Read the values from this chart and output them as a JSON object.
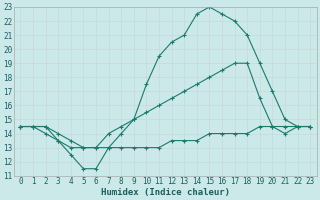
{
  "xlabel": "Humidex (Indice chaleur)",
  "bg_color": "#cce9e9",
  "grid_color": "#d4e8e8",
  "line_color": "#1a7a6e",
  "xlim_min": -0.5,
  "xlim_max": 23.5,
  "ylim_min": 11,
  "ylim_max": 23,
  "xticks": [
    0,
    1,
    2,
    3,
    4,
    5,
    6,
    7,
    8,
    9,
    10,
    11,
    12,
    13,
    14,
    15,
    16,
    17,
    18,
    19,
    20,
    21,
    22,
    23
  ],
  "yticks": [
    11,
    12,
    13,
    14,
    15,
    16,
    17,
    18,
    19,
    20,
    21,
    22,
    23
  ],
  "line1_x": [
    0,
    1,
    2,
    3,
    4,
    5,
    6,
    7,
    8,
    9,
    10,
    11,
    12,
    13,
    14,
    15,
    16,
    17,
    18,
    19,
    20,
    21,
    22,
    23
  ],
  "line1_y": [
    14.5,
    14.5,
    14.5,
    13.5,
    12.5,
    11.5,
    11.5,
    13.0,
    14.0,
    15.0,
    17.5,
    19.5,
    20.5,
    21.0,
    22.5,
    23.0,
    22.5,
    22.0,
    21.0,
    19.0,
    17.0,
    15.0,
    14.5,
    14.5
  ],
  "line2_x": [
    0,
    1,
    2,
    3,
    4,
    5,
    6,
    7,
    8,
    9,
    10,
    11,
    12,
    13,
    14,
    15,
    16,
    17,
    18,
    19,
    20,
    21,
    22,
    23
  ],
  "line2_y": [
    14.5,
    14.5,
    14.5,
    14.0,
    13.5,
    13.0,
    13.0,
    14.0,
    14.5,
    15.0,
    15.5,
    16.0,
    16.5,
    17.0,
    17.5,
    18.0,
    18.5,
    19.0,
    19.0,
    16.5,
    14.5,
    14.0,
    14.5,
    14.5
  ],
  "line3_x": [
    0,
    1,
    2,
    3,
    4,
    5,
    6,
    7,
    8,
    9,
    10,
    11,
    12,
    13,
    14,
    15,
    16,
    17,
    18,
    19,
    20,
    21,
    22,
    23
  ],
  "line3_y": [
    14.5,
    14.5,
    14.0,
    13.5,
    13.0,
    13.0,
    13.0,
    13.0,
    13.0,
    13.0,
    13.0,
    13.0,
    13.5,
    13.5,
    13.5,
    14.0,
    14.0,
    14.0,
    14.0,
    14.5,
    14.5,
    14.5,
    14.5,
    14.5
  ]
}
